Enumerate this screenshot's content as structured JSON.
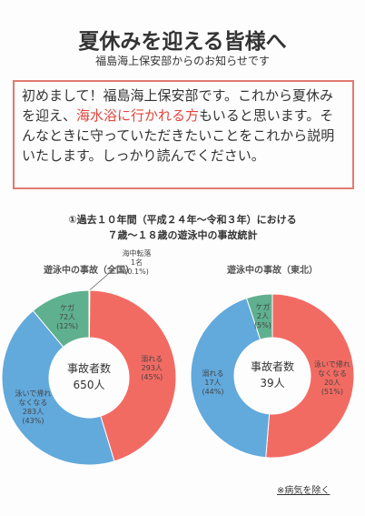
{
  "header": {
    "title": "夏休みを迎える皆様へ",
    "subtitle": "福島海上保安部からのお知らせです"
  },
  "message": {
    "before": "初めまして！福島海上保安部です。これから夏休みを迎え、",
    "highlight": "海水浴に行かれる方",
    "after": "もいると思います。そんなときに守っていただきたいことをこれから説明いたします。しっかり読んでください。"
  },
  "section": {
    "line1": "①過去１０年間（平成２４年～令和３年）における",
    "line2": "７歳～１８歳の遊泳中の事故統計"
  },
  "chart_data": [
    {
      "type": "pie",
      "title": "遊泳中の事故（全国）",
      "center_label": "事故者数",
      "total_label": "650人",
      "categories": [
        "海中転落",
        "溺れる",
        "泳いで帰れなくなる",
        "ケガ"
      ],
      "values": [
        1,
        293,
        283,
        72
      ],
      "value_labels": [
        "1名",
        "293人",
        "283人",
        "72人"
      ],
      "percent_labels": [
        "(0.1%)",
        "(45%)",
        "(43%)",
        "(12%)"
      ],
      "colors": [
        "#f26b63",
        "#f26b63",
        "#62a9dc",
        "#5fb08f"
      ]
    },
    {
      "type": "pie",
      "title": "遊泳中の事故（東北）",
      "center_label": "事故者数",
      "total_label": "39人",
      "categories": [
        "泳いで帰れなくなる",
        "溺れる",
        "ケガ"
      ],
      "values": [
        20,
        17,
        2
      ],
      "value_labels": [
        "20人",
        "17人",
        "2人"
      ],
      "percent_labels": [
        "(51%)",
        "(44%)",
        "(5%)"
      ],
      "colors": [
        "#f26b63",
        "#62a9dc",
        "#5fb08f"
      ]
    }
  ],
  "footnote": "※病気を除く"
}
